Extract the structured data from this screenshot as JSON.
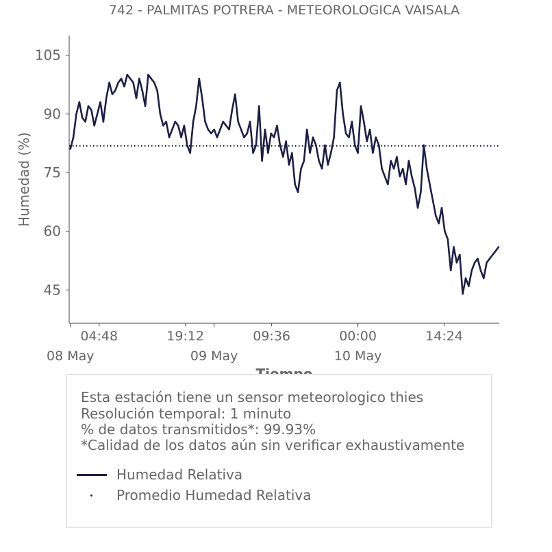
{
  "title": "742 - PALMITAS POTRERA - METEOROLOGICA VAISALA",
  "info": {
    "lines": [
      "Esta estación tiene un sensor meteorologico thies",
      "Resolución temporal: 1 minuto",
      "% de datos transmitidos*: 99.93%",
      "*Calidad de los datos aún sin verificar exhaustivamente"
    ]
  },
  "legend": [
    {
      "label": "Humedad Relativa",
      "style": "line",
      "color": "#1e1e46"
    },
    {
      "label": "Promedio Humedad Relativa",
      "style": "dotted",
      "color": "#1e1e46"
    }
  ],
  "chart_data": {
    "type": "line",
    "title": "742 - PALMITAS POTRERA - METEOROLOGICA VAISALA",
    "xlabel": "Tiempo",
    "ylabel": "Humedad (%)",
    "x_unit": "hours since 08 May 00:00",
    "xlim": [
      -0.2,
      71.6
    ],
    "ylim": [
      36.5,
      110
    ],
    "y_ticks": [
      45,
      60,
      75,
      90,
      105
    ],
    "x_ticks": [
      {
        "x": 4.8,
        "label": "04:48"
      },
      {
        "x": 19.2,
        "label": "19:12"
      },
      {
        "x": 33.6,
        "label": "09:36"
      },
      {
        "x": 48.0,
        "label": "00:00"
      },
      {
        "x": 62.4,
        "label": "14:24"
      }
    ],
    "x_major_ticks": [
      {
        "x": 0,
        "label": "08 May"
      },
      {
        "x": 24,
        "label": "09 May"
      },
      {
        "x": 48,
        "label": "10 May"
      }
    ],
    "grid": false,
    "series": [
      {
        "name": "Humedad Relativa",
        "color": "#1e1e46",
        "style": "line",
        "x": [
          0,
          0.5,
          1,
          1.5,
          2,
          2.5,
          3,
          3.5,
          4,
          4.5,
          5,
          5.5,
          6,
          6.5,
          7,
          7.5,
          8,
          8.5,
          9,
          9.5,
          10,
          10.5,
          11,
          11.5,
          12,
          12.5,
          13,
          13.5,
          14,
          14.5,
          15,
          15.5,
          16,
          16.5,
          17,
          17.5,
          18,
          18.5,
          19,
          19.5,
          20,
          20.5,
          21,
          21.5,
          22,
          22.5,
          23,
          23.5,
          24,
          24.5,
          25,
          25.5,
          26,
          26.5,
          27,
          27.5,
          28,
          28.5,
          29,
          29.5,
          30,
          30.5,
          31,
          31.5,
          32,
          32.5,
          33,
          33.5,
          34,
          34.5,
          35,
          35.5,
          36,
          36.5,
          37,
          37.5,
          38,
          38.5,
          39,
          39.5,
          40,
          40.5,
          41,
          41.5,
          42,
          42.5,
          43,
          43.5,
          44,
          44.5,
          45,
          45.5,
          46,
          46.5,
          47,
          47.5,
          48,
          48.5,
          49,
          49.5,
          50,
          50.5,
          51,
          51.5,
          52,
          52.5,
          53,
          53.5,
          54,
          54.5,
          55,
          55.5,
          56,
          56.5,
          57,
          57.5,
          58,
          58.5,
          59,
          59.5,
          60,
          60.5,
          61,
          61.5,
          62,
          62.5,
          63,
          63.5,
          64,
          64.5,
          65,
          65.5,
          66,
          66.5,
          67,
          67.5,
          68,
          68.5,
          69,
          69.5,
          70,
          70.5,
          71,
          71.5
        ],
        "values": [
          81,
          84,
          90,
          93,
          89,
          88,
          92,
          91,
          87,
          90,
          93,
          88,
          94,
          98,
          95,
          96,
          98,
          99,
          97,
          100,
          99,
          98,
          94,
          99,
          96,
          92,
          100,
          99,
          98,
          96,
          90,
          87,
          88,
          84,
          86,
          88,
          87,
          84,
          87,
          82,
          80,
          88,
          92,
          99,
          94,
          88,
          86,
          85,
          86,
          84,
          86,
          88,
          87,
          86,
          91,
          95,
          88,
          86,
          84,
          85,
          88,
          80,
          82,
          92,
          78,
          86,
          80,
          85,
          84,
          87,
          82,
          79,
          83,
          77,
          80,
          72,
          70,
          76,
          78,
          86,
          80,
          84,
          82,
          78,
          76,
          82,
          77,
          80,
          84,
          96,
          98,
          90,
          85,
          84,
          88,
          82,
          80,
          92,
          88,
          83,
          86,
          80,
          84,
          82,
          76,
          74,
          72,
          78,
          76,
          79,
          74,
          76,
          72,
          78,
          74,
          71,
          66,
          70,
          82,
          76,
          72,
          68,
          64,
          62,
          66,
          60,
          58,
          50,
          56,
          52,
          54,
          44,
          48,
          46,
          50,
          52,
          53,
          50,
          48,
          52,
          53,
          54,
          55,
          56
        ]
      },
      {
        "name": "Promedio Humedad Relativa",
        "color": "#1e1e46",
        "style": "dotted",
        "value": 81.8
      }
    ]
  }
}
